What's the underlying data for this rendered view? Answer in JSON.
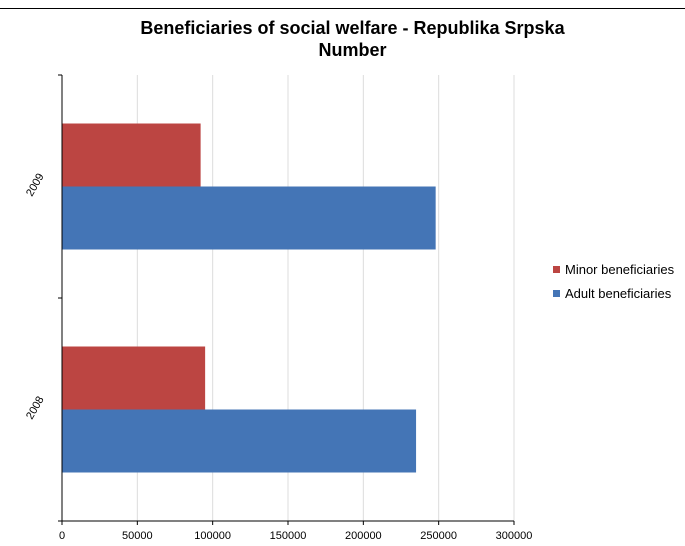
{
  "chart_data": {
    "type": "bar",
    "orientation": "horizontal",
    "title": "Beneficiaries of social welfare - Republika Srpska",
    "subtitle": "Number",
    "categories": [
      "2009",
      "2008"
    ],
    "series": [
      {
        "name": "Minor beneficiaries",
        "color": "#bc4542",
        "values": [
          92000,
          95000
        ]
      },
      {
        "name": "Adult beneficiaries",
        "color": "#4475b6",
        "values": [
          248000,
          235000
        ]
      }
    ],
    "xlim": [
      0,
      300000
    ],
    "x_ticks": [
      "0",
      "50000",
      "100000",
      "150000",
      "200000",
      "250000",
      "300000"
    ],
    "grid": true,
    "legend_position": "right"
  }
}
